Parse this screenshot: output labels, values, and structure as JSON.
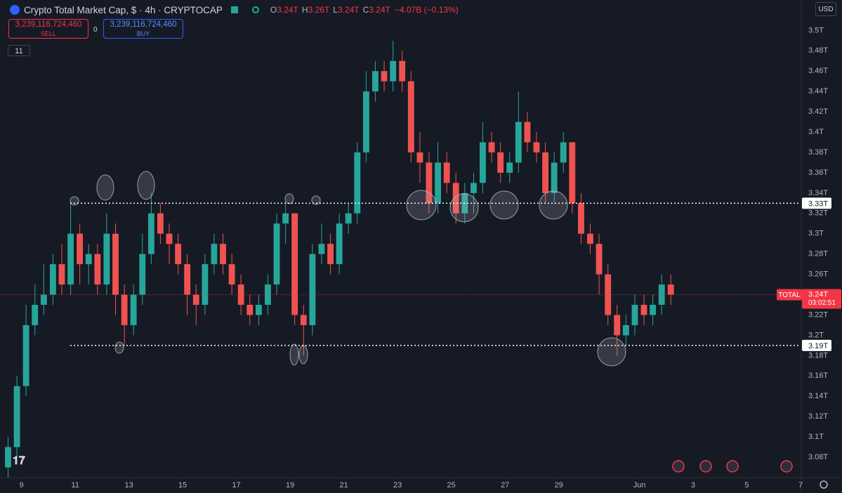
{
  "header": {
    "title": "Crypto Total Market Cap, $ · 4h · CRYPTOCAP",
    "ohlc": [
      {
        "label": "O",
        "value": "3.24T"
      },
      {
        "label": "H",
        "value": "3.26T"
      },
      {
        "label": "L",
        "value": "3.24T"
      },
      {
        "label": "C",
        "value": "3.24T"
      }
    ],
    "change": "−4.07B (−0.13%)",
    "sell": {
      "price": "3,239,116,724,460",
      "label": "SELL"
    },
    "buy": {
      "price": "3,239,116,724,460",
      "label": "BUY"
    },
    "spread": "0",
    "indicators": "11",
    "currency": "USD"
  },
  "chart_data": {
    "type": "candlestick",
    "up_color": "#26a69a",
    "down_color": "#ef5350",
    "grid": false,
    "x": [
      8.5,
      8.83,
      9.17,
      9.5,
      9.83,
      10.17,
      10.5,
      10.83,
      11.17,
      11.5,
      11.83,
      12.17,
      12.5,
      12.83,
      13.17,
      13.5,
      13.83,
      14.17,
      14.5,
      14.83,
      15.17,
      15.5,
      15.83,
      16.17,
      16.5,
      16.83,
      17.17,
      17.5,
      17.83,
      18.17,
      18.5,
      18.83,
      19.17,
      19.5,
      19.83,
      20.17,
      20.5,
      20.83,
      21.17,
      21.5,
      21.83,
      22.17,
      22.5,
      22.83,
      23.17,
      23.5,
      23.83,
      24.17,
      24.5,
      24.83,
      25.17,
      25.5,
      25.83,
      26.17,
      26.5,
      26.83,
      27.17,
      27.5,
      27.83,
      28.17,
      28.5,
      28.83,
      29.17,
      29.5,
      29.83,
      30.17,
      30.5,
      30.83,
      31.17,
      31.5,
      31.83,
      32.17,
      32.5,
      32.83,
      33.17
    ],
    "open": [
      3.07,
      3.09,
      3.15,
      3.21,
      3.23,
      3.24,
      3.27,
      3.25,
      3.3,
      3.27,
      3.28,
      3.25,
      3.3,
      3.24,
      3.21,
      3.24,
      3.28,
      3.32,
      3.3,
      3.29,
      3.27,
      3.24,
      3.23,
      3.27,
      3.29,
      3.27,
      3.25,
      3.23,
      3.22,
      3.23,
      3.25,
      3.31,
      3.32,
      3.22,
      3.21,
      3.28,
      3.29,
      3.27,
      3.31,
      3.32,
      3.38,
      3.44,
      3.46,
      3.45,
      3.47,
      3.45,
      3.38,
      3.37,
      3.33,
      3.37,
      3.35,
      3.32,
      3.34,
      3.35,
      3.39,
      3.38,
      3.36,
      3.37,
      3.41,
      3.39,
      3.38,
      3.34,
      3.37,
      3.39,
      3.33,
      3.3,
      3.29,
      3.26,
      3.22,
      3.2,
      3.21,
      3.23,
      3.22,
      3.23,
      3.25
    ],
    "high": [
      3.1,
      3.16,
      3.23,
      3.25,
      3.27,
      3.28,
      3.29,
      3.33,
      3.31,
      3.29,
      3.29,
      3.32,
      3.31,
      3.25,
      3.25,
      3.3,
      3.34,
      3.33,
      3.31,
      3.3,
      3.28,
      3.25,
      3.28,
      3.3,
      3.3,
      3.28,
      3.26,
      3.24,
      3.24,
      3.26,
      3.32,
      3.33,
      3.32,
      3.23,
      3.29,
      3.31,
      3.3,
      3.32,
      3.33,
      3.39,
      3.46,
      3.47,
      3.47,
      3.49,
      3.48,
      3.46,
      3.4,
      3.38,
      3.39,
      3.38,
      3.36,
      3.35,
      3.36,
      3.41,
      3.4,
      3.39,
      3.38,
      3.44,
      3.42,
      3.4,
      3.39,
      3.38,
      3.4,
      3.39,
      3.34,
      3.31,
      3.3,
      3.27,
      3.23,
      3.22,
      3.24,
      3.24,
      3.24,
      3.26,
      3.26
    ],
    "low": [
      3.06,
      3.08,
      3.14,
      3.2,
      3.22,
      3.23,
      3.24,
      3.24,
      3.25,
      3.25,
      3.24,
      3.24,
      3.22,
      3.19,
      3.2,
      3.23,
      3.27,
      3.29,
      3.27,
      3.26,
      3.22,
      3.21,
      3.22,
      3.26,
      3.26,
      3.24,
      3.22,
      3.21,
      3.21,
      3.22,
      3.24,
      3.29,
      3.21,
      3.18,
      3.2,
      3.27,
      3.26,
      3.26,
      3.3,
      3.31,
      3.37,
      3.43,
      3.44,
      3.44,
      3.44,
      3.37,
      3.35,
      3.32,
      3.32,
      3.34,
      3.31,
      3.31,
      3.32,
      3.34,
      3.37,
      3.35,
      3.35,
      3.36,
      3.38,
      3.37,
      3.33,
      3.33,
      3.36,
      3.32,
      3.29,
      3.28,
      3.24,
      3.21,
      3.18,
      3.19,
      3.2,
      3.21,
      3.21,
      3.22,
      3.23
    ],
    "close": [
      3.09,
      3.15,
      3.21,
      3.23,
      3.24,
      3.27,
      3.25,
      3.3,
      3.27,
      3.28,
      3.25,
      3.3,
      3.24,
      3.21,
      3.24,
      3.28,
      3.32,
      3.3,
      3.29,
      3.27,
      3.24,
      3.23,
      3.27,
      3.29,
      3.27,
      3.25,
      3.23,
      3.22,
      3.23,
      3.25,
      3.31,
      3.32,
      3.22,
      3.21,
      3.28,
      3.29,
      3.27,
      3.31,
      3.32,
      3.38,
      3.44,
      3.46,
      3.45,
      3.47,
      3.45,
      3.38,
      3.37,
      3.33,
      3.37,
      3.35,
      3.32,
      3.34,
      3.35,
      3.39,
      3.38,
      3.36,
      3.37,
      3.41,
      3.39,
      3.38,
      3.34,
      3.37,
      3.39,
      3.33,
      3.3,
      3.29,
      3.26,
      3.22,
      3.2,
      3.21,
      3.23,
      3.22,
      3.23,
      3.25,
      3.24
    ],
    "xlim": [
      8.2,
      38
    ],
    "xticks": [
      9,
      11,
      13,
      15,
      17,
      19,
      21,
      23,
      25,
      27,
      29,
      {
        "value": 32,
        "label": "Jun"
      },
      {
        "value": 34,
        "label": "3"
      },
      {
        "value": 36,
        "label": "5"
      },
      {
        "value": 38,
        "label": "7"
      }
    ],
    "ylim": [
      3.06,
      3.53
    ],
    "yticks": [
      {
        "value": 3.08,
        "label": "3.08T"
      },
      {
        "value": 3.1,
        "label": "3.1T"
      },
      {
        "value": 3.12,
        "label": "3.12T"
      },
      {
        "value": 3.14,
        "label": "3.14T"
      },
      {
        "value": 3.16,
        "label": "3.16T"
      },
      {
        "value": 3.18,
        "label": "3.18T"
      },
      {
        "value": 3.2,
        "label": "3.2T"
      },
      {
        "value": 3.22,
        "label": "3.22T"
      },
      {
        "value": 3.24,
        "label": "3.24T"
      },
      {
        "value": 3.26,
        "label": "3.26T"
      },
      {
        "value": 3.28,
        "label": "3.28T"
      },
      {
        "value": 3.3,
        "label": "3.3T"
      },
      {
        "value": 3.32,
        "label": "3.32T"
      },
      {
        "value": 3.34,
        "label": "3.34T"
      },
      {
        "value": 3.36,
        "label": "3.36T"
      },
      {
        "value": 3.38,
        "label": "3.38T"
      },
      {
        "value": 3.4,
        "label": "3.4T"
      },
      {
        "value": 3.42,
        "label": "3.42T"
      },
      {
        "value": 3.44,
        "label": "3.44T"
      },
      {
        "value": 3.46,
        "label": "3.46T"
      },
      {
        "value": 3.48,
        "label": "3.48T"
      },
      {
        "value": 3.5,
        "label": "3.5T"
      }
    ],
    "price_lines": [
      {
        "value": 3.33,
        "label": "3.33T"
      },
      {
        "value": 3.19,
        "label": "3.19T"
      }
    ],
    "last_price": {
      "value": 3.24,
      "label": "3.24T",
      "name": "TOTAL",
      "countdown": "03:02:51",
      "color": "#f23645"
    }
  }
}
